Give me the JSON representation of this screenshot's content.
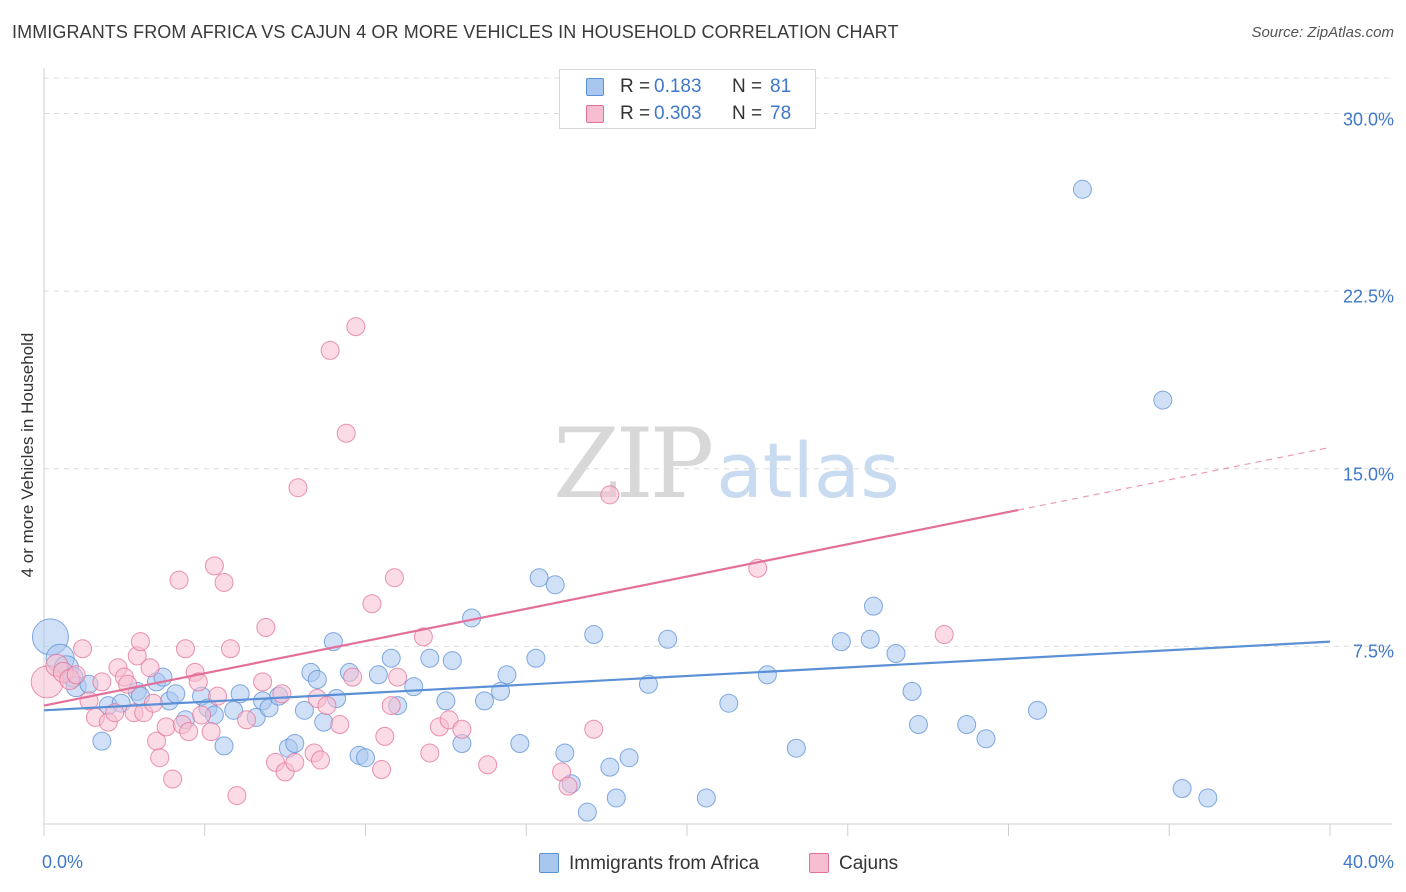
{
  "header": {
    "title": "IMMIGRANTS FROM AFRICA VS CAJUN 4 OR MORE VEHICLES IN HOUSEHOLD CORRELATION CHART",
    "source": "Source: ZipAtlas.com"
  },
  "watermark": {
    "zip": "ZIP",
    "atlas": "atlas"
  },
  "legend": {
    "rows": [
      {
        "r_label": "R =",
        "r_value": "0.183",
        "n_label": "N =",
        "n_value": "81",
        "color": "#5b8fd6",
        "fill": "#a9c6ee"
      },
      {
        "r_label": "R =",
        "r_value": "0.303",
        "n_label": "N =",
        "n_value": "78",
        "color": "#e3709a",
        "fill": "#f7bdd0"
      }
    ]
  },
  "bottom_legend": {
    "items": [
      {
        "label": "Immigrants from Africa",
        "color": "#5b8fd6",
        "fill": "#a9c6ee"
      },
      {
        "label": "Cajuns",
        "color": "#e3709a",
        "fill": "#f7bdd0"
      }
    ]
  },
  "chart_data": {
    "type": "scatter",
    "title": "IMMIGRANTS FROM AFRICA VS CAJUN 4 OR MORE VEHICLES IN HOUSEHOLD CORRELATION CHART",
    "xlabel": "",
    "ylabel": "4 or more Vehicles in Household",
    "xlim": [
      0,
      40
    ],
    "ylim": [
      0,
      31.5
    ],
    "x_tick_labels": [
      "0.0%",
      "40.0%"
    ],
    "y_ticks": [
      7.5,
      15.0,
      22.5,
      30.0
    ],
    "y_tick_labels": [
      "7.5%",
      "15.0%",
      "22.5%",
      "30.0%"
    ],
    "grid": true,
    "legend_position": "top-center",
    "series": [
      {
        "name": "Immigrants from Africa",
        "color": "#5b8fd6",
        "fill": "#a9c6ee",
        "trend": {
          "x0": 0,
          "y0": 4.8,
          "x1": 40,
          "y1": 7.7,
          "dashed_from": null
        },
        "points": [
          [
            0.2,
            7.9,
            18
          ],
          [
            0.5,
            7.0,
            14
          ],
          [
            0.7,
            6.6,
            12
          ],
          [
            0.9,
            6.2,
            10
          ],
          [
            1.0,
            5.8,
            10
          ],
          [
            1.4,
            5.9,
            9
          ],
          [
            1.8,
            3.5,
            9
          ],
          [
            2.0,
            5.0,
            9
          ],
          [
            2.4,
            5.1,
            9
          ],
          [
            2.9,
            5.6,
            9
          ],
          [
            3.0,
            5.4,
            9
          ],
          [
            3.5,
            6.0,
            9
          ],
          [
            3.7,
            6.2,
            9
          ],
          [
            3.9,
            5.2,
            9
          ],
          [
            4.1,
            5.5,
            9
          ],
          [
            4.4,
            4.4,
            9
          ],
          [
            4.9,
            5.4,
            9
          ],
          [
            5.1,
            4.9,
            9
          ],
          [
            5.3,
            4.6,
            9
          ],
          [
            5.6,
            3.3,
            9
          ],
          [
            5.9,
            4.8,
            9
          ],
          [
            6.1,
            5.5,
            9
          ],
          [
            6.6,
            4.5,
            9
          ],
          [
            6.8,
            5.2,
            9
          ],
          [
            7.0,
            4.9,
            9
          ],
          [
            7.3,
            5.4,
            9
          ],
          [
            7.6,
            3.2,
            9
          ],
          [
            7.8,
            3.4,
            9
          ],
          [
            8.1,
            4.8,
            9
          ],
          [
            8.3,
            6.4,
            9
          ],
          [
            8.5,
            6.1,
            9
          ],
          [
            8.7,
            4.3,
            9
          ],
          [
            9.0,
            7.7,
            9
          ],
          [
            9.1,
            5.3,
            9
          ],
          [
            9.5,
            6.4,
            9
          ],
          [
            9.8,
            2.9,
            9
          ],
          [
            10.0,
            2.8,
            9
          ],
          [
            10.4,
            6.3,
            9
          ],
          [
            10.8,
            7.0,
            9
          ],
          [
            11.0,
            5.0,
            9
          ],
          [
            11.5,
            5.8,
            9
          ],
          [
            12.0,
            7.0,
            9
          ],
          [
            12.5,
            5.2,
            9
          ],
          [
            12.7,
            6.9,
            9
          ],
          [
            13.0,
            3.4,
            9
          ],
          [
            13.3,
            8.7,
            9
          ],
          [
            13.7,
            5.2,
            9
          ],
          [
            14.2,
            5.6,
            9
          ],
          [
            14.4,
            6.3,
            9
          ],
          [
            14.8,
            3.4,
            9
          ],
          [
            15.3,
            7.0,
            9
          ],
          [
            15.4,
            10.4,
            9
          ],
          [
            15.9,
            10.1,
            9
          ],
          [
            16.2,
            3.0,
            9
          ],
          [
            16.4,
            1.7,
            9
          ],
          [
            16.9,
            0.5,
            9
          ],
          [
            17.1,
            8.0,
            9
          ],
          [
            17.6,
            2.4,
            9
          ],
          [
            17.8,
            1.1,
            9
          ],
          [
            18.2,
            2.8,
            9
          ],
          [
            18.8,
            5.9,
            9
          ],
          [
            19.4,
            7.8,
            9
          ],
          [
            20.6,
            1.1,
            9
          ],
          [
            21.3,
            5.1,
            9
          ],
          [
            22.5,
            6.3,
            9
          ],
          [
            23.4,
            3.2,
            9
          ],
          [
            24.8,
            7.7,
            9
          ],
          [
            25.7,
            7.8,
            9
          ],
          [
            25.8,
            9.2,
            9
          ],
          [
            26.5,
            7.2,
            9
          ],
          [
            27.0,
            5.6,
            9
          ],
          [
            27.2,
            4.2,
            9
          ],
          [
            28.7,
            4.2,
            9
          ],
          [
            29.3,
            3.6,
            9
          ],
          [
            30.9,
            4.8,
            9
          ],
          [
            32.3,
            26.8,
            9
          ],
          [
            34.8,
            17.9,
            9
          ],
          [
            35.4,
            1.5,
            9
          ],
          [
            36.2,
            1.1,
            9
          ]
        ]
      },
      {
        "name": "Cajuns",
        "color": "#e3709a",
        "fill": "#f7bdd0",
        "trend": {
          "x0": 0,
          "y0": 5.0,
          "x1": 40,
          "y1": 15.9,
          "dashed_from": 30.3
        },
        "points": [
          [
            0.1,
            6.0,
            16
          ],
          [
            0.4,
            6.7,
            11
          ],
          [
            0.6,
            6.4,
            10
          ],
          [
            0.8,
            6.1,
            10
          ],
          [
            1.0,
            6.3,
            9
          ],
          [
            1.2,
            7.4,
            9
          ],
          [
            1.4,
            5.2,
            9
          ],
          [
            1.6,
            4.5,
            9
          ],
          [
            1.8,
            6.0,
            9
          ],
          [
            2.0,
            4.3,
            9
          ],
          [
            2.2,
            4.7,
            9
          ],
          [
            2.3,
            6.6,
            9
          ],
          [
            2.5,
            6.2,
            9
          ],
          [
            2.6,
            5.9,
            9
          ],
          [
            2.8,
            4.7,
            9
          ],
          [
            2.9,
            7.1,
            9
          ],
          [
            3.0,
            7.7,
            9
          ],
          [
            3.1,
            4.7,
            9
          ],
          [
            3.3,
            6.6,
            9
          ],
          [
            3.4,
            5.1,
            9
          ],
          [
            3.5,
            3.5,
            9
          ],
          [
            3.6,
            2.8,
            9
          ],
          [
            3.8,
            4.1,
            9
          ],
          [
            4.0,
            1.9,
            9
          ],
          [
            4.2,
            10.3,
            9
          ],
          [
            4.3,
            4.2,
            9
          ],
          [
            4.4,
            7.4,
            9
          ],
          [
            4.5,
            3.9,
            9
          ],
          [
            4.7,
            6.4,
            9
          ],
          [
            4.8,
            6.0,
            9
          ],
          [
            4.9,
            4.6,
            9
          ],
          [
            5.2,
            3.9,
            9
          ],
          [
            5.3,
            10.9,
            9
          ],
          [
            5.4,
            5.4,
            9
          ],
          [
            5.6,
            10.2,
            9
          ],
          [
            5.8,
            7.4,
            9
          ],
          [
            6.0,
            1.2,
            9
          ],
          [
            6.3,
            4.4,
            9
          ],
          [
            6.8,
            6.0,
            9
          ],
          [
            6.9,
            8.3,
            9
          ],
          [
            7.2,
            2.6,
            9
          ],
          [
            7.4,
            5.5,
            9
          ],
          [
            7.5,
            2.2,
            9
          ],
          [
            7.8,
            2.6,
            9
          ],
          [
            7.9,
            14.2,
            9
          ],
          [
            8.4,
            3.0,
            9
          ],
          [
            8.5,
            5.3,
            9
          ],
          [
            8.6,
            2.7,
            9
          ],
          [
            8.8,
            5.0,
            9
          ],
          [
            8.9,
            20.0,
            9
          ],
          [
            9.2,
            4.2,
            9
          ],
          [
            9.4,
            16.5,
            9
          ],
          [
            9.6,
            6.2,
            9
          ],
          [
            9.7,
            21.0,
            9
          ],
          [
            10.2,
            9.3,
            9
          ],
          [
            10.5,
            2.3,
            9
          ],
          [
            10.6,
            3.7,
            9
          ],
          [
            10.8,
            5.0,
            9
          ],
          [
            11.8,
            7.9,
            9
          ],
          [
            12.0,
            3.0,
            9
          ],
          [
            12.3,
            4.1,
            9
          ],
          [
            12.6,
            4.4,
            9
          ],
          [
            13.0,
            4.0,
            9
          ],
          [
            13.8,
            2.5,
            9
          ],
          [
            16.1,
            2.2,
            9
          ],
          [
            16.3,
            1.6,
            9
          ],
          [
            17.1,
            4.0,
            9
          ],
          [
            17.6,
            13.9,
            9
          ],
          [
            22.2,
            10.8,
            9
          ],
          [
            28.0,
            8.0,
            9
          ],
          [
            11.0,
            6.2,
            9
          ],
          [
            10.9,
            10.4,
            9
          ]
        ]
      }
    ]
  }
}
